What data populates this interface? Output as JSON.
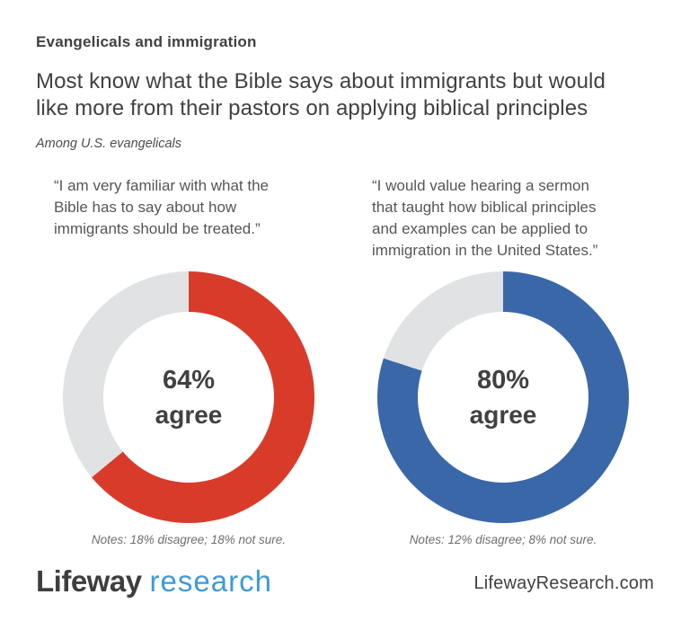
{
  "header": {
    "kicker": "Evangelicals and immigration",
    "title_lines": [
      "Most know what the Bible says about immigrants but would",
      "like more from their pastors on applying biblical principles"
    ],
    "subtitle": "Among U.S. evangelicals"
  },
  "chart_data": [
    {
      "type": "pie",
      "variant": "donut",
      "question": "“I am very familiar with what the Bible has to say about how immigrants should be treated.”",
      "question_lines": [
        "“I am very familiar with what the",
        "Bible has to say about how",
        "immigrants should be treated.”"
      ],
      "segments": [
        {
          "label": "agree",
          "value": 64,
          "color": "#d93b2b"
        },
        {
          "label": "disagree",
          "value": 18,
          "color": "#e1e2e4"
        },
        {
          "label": "not sure",
          "value": 18,
          "color": "#e1e2e4"
        }
      ],
      "agree_percent": 64,
      "center_value": "64%",
      "center_caption": "agree",
      "note": "Notes: 18% disagree; 18% not sure.",
      "color": "#d93b2b",
      "track_color": "#e1e2e4",
      "start_angle_deg": 0,
      "direction": "clockwise",
      "legend": "none"
    },
    {
      "type": "pie",
      "variant": "donut",
      "question": "“I would value hearing a sermon that taught how biblical principles and examples can be applied to immigration in the United States.”",
      "question_lines": [
        "“I would value hearing a sermon",
        "that taught how biblical principles",
        "and examples can be applied to",
        "immigration in the United States.”"
      ],
      "segments": [
        {
          "label": "agree",
          "value": 80,
          "color": "#3a67a8"
        },
        {
          "label": "disagree",
          "value": 12,
          "color": "#e1e2e4"
        },
        {
          "label": "not sure",
          "value": 8,
          "color": "#e1e2e4"
        }
      ],
      "agree_percent": 80,
      "center_value": "80%",
      "center_caption": "agree",
      "note": "Notes: 12% disagree; 8% not sure.",
      "color": "#3a67a8",
      "track_color": "#e1e2e4",
      "start_angle_deg": 0,
      "direction": "clockwise",
      "legend": "none"
    }
  ],
  "footer": {
    "logo_part1": "Lifeway",
    "logo_part2": "research",
    "website": "LifewayResearch.com"
  },
  "colors": {
    "background": "#ffffff",
    "text_dark": "#414042",
    "quote_gray": "#55565a",
    "note_gray": "#6d6e71",
    "agree_red": "#d93b2b",
    "agree_blue": "#3a67a8",
    "track_gray": "#e1e2e4",
    "logo_dark": "#3e3e40",
    "logo_blue": "#3e9ad8"
  }
}
